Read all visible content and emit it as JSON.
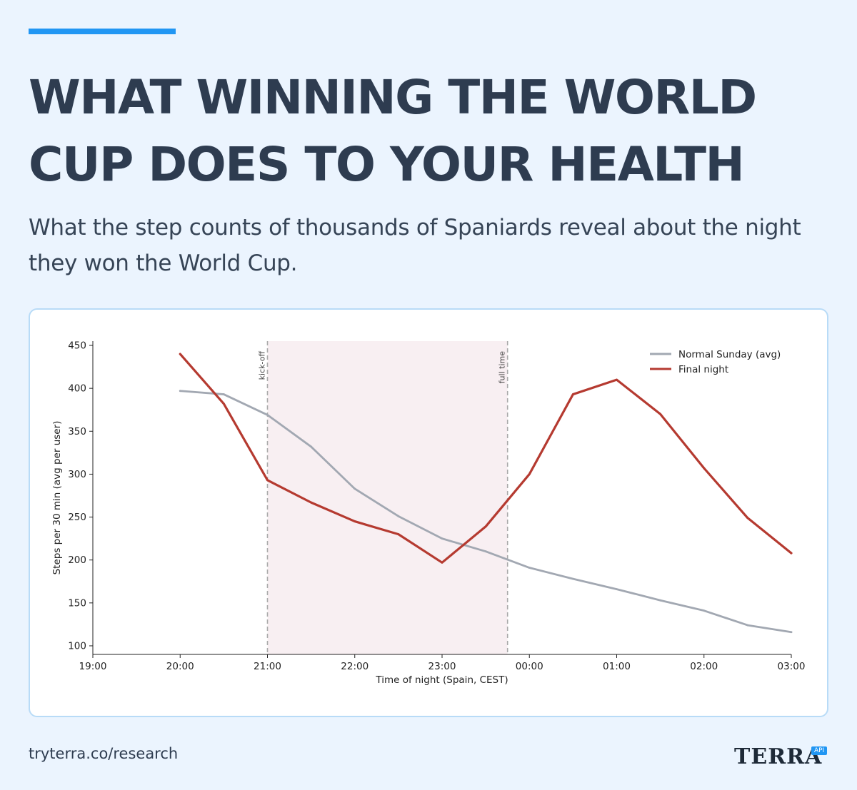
{
  "header": {
    "title": "WHAT WINNING THE WORLD CUP DOES TO YOUR HEALTH",
    "subtitle": "What the step counts of thousands of Spaniards reveal about the night they won the World Cup."
  },
  "footer": {
    "url": "tryterra.co/research",
    "logo_text": "TERRA",
    "logo_badge": "API"
  },
  "colors": {
    "accent": "#2196f3",
    "normal_series": "#a2a8b2",
    "final_series": "#b53a30",
    "shaded_region": "#f8eff2"
  },
  "chart_data": {
    "type": "line",
    "xlabel": "Time of night (Spain, CEST)",
    "ylabel": "Steps per 30 min (avg per user)",
    "xlim": [
      0,
      8
    ],
    "ylim": [
      90,
      455
    ],
    "x_ticks": [
      {
        "value": 0,
        "label": "19:00"
      },
      {
        "value": 1,
        "label": "20:00"
      },
      {
        "value": 2,
        "label": "21:00"
      },
      {
        "value": 3,
        "label": "22:00"
      },
      {
        "value": 4,
        "label": "23:00"
      },
      {
        "value": 5,
        "label": "00:00"
      },
      {
        "value": 6,
        "label": "01:00"
      },
      {
        "value": 7,
        "label": "02:00"
      },
      {
        "value": 8,
        "label": "03:00"
      }
    ],
    "y_ticks": [
      100,
      150,
      200,
      250,
      300,
      350,
      400,
      450
    ],
    "legend_position": "top-right",
    "grid": false,
    "shaded_region": [
      2,
      4.75
    ],
    "annotations": [
      {
        "x": 2,
        "label": "kick-off"
      },
      {
        "x": 4.75,
        "label": "full time"
      }
    ],
    "x": [
      1,
      1.5,
      2,
      2.5,
      3,
      3.5,
      4,
      4.5,
      5,
      5.5,
      6,
      6.5,
      7,
      7.5,
      8
    ],
    "series": [
      {
        "name": "Normal Sunday (avg)",
        "color": "#a2a8b2",
        "values": [
          397,
          393,
          369,
          332,
          283,
          251,
          225,
          210,
          191,
          178,
          166,
          153,
          141,
          124,
          116
        ]
      },
      {
        "name": "Final night",
        "color": "#b53a30",
        "values": [
          440,
          382,
          293,
          267,
          245,
          230,
          197,
          239,
          300,
          393,
          410,
          370,
          307,
          249,
          208
        ]
      }
    ]
  }
}
